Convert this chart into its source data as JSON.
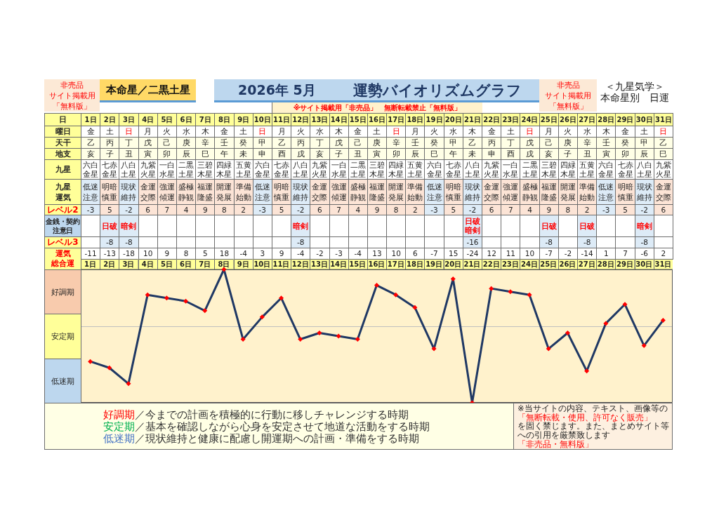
{
  "chart_data": {
    "type": "line",
    "title": "運勢バイオリズムグラフ",
    "subtitle": "2026年 5月",
    "categories": [
      "1日",
      "2日",
      "3日",
      "4日",
      "5日",
      "6日",
      "7日",
      "8日",
      "9日",
      "10日",
      "11日",
      "12日",
      "13日",
      "14日",
      "15日",
      "16日",
      "17日",
      "18日",
      "19日",
      "20日",
      "21日",
      "22日",
      "23日",
      "24日",
      "25日",
      "26日",
      "27日",
      "28日",
      "29日",
      "30日",
      "31日"
    ],
    "values": [
      -11,
      -13,
      -18,
      10,
      9,
      8,
      5,
      18,
      -4,
      3,
      9,
      -4,
      -2,
      -3,
      -4,
      13,
      10,
      6,
      -7,
      15,
      -24,
      12,
      11,
      10,
      -7,
      -2,
      -14,
      1,
      7,
      -6,
      2
    ],
    "color": "#1f3864",
    "colors": [
      "#ff0000",
      "#ff0000",
      "#ff0000",
      "#ff0000",
      "#ff0000",
      "#ff0000",
      "#ff0000",
      "#ff0000",
      "#ff0000",
      "#ff0000",
      "#ff0000",
      "#ff0000",
      "#ff0000",
      "#ff0000",
      "#ff0000",
      "#ff0000",
      "#ff0000",
      "#ff0000",
      "#ff0000",
      "#ff0000",
      "#ff0000",
      "#ff0000",
      "#ff0000",
      "#ff0000",
      "#ff0000",
      "#ff0000",
      "#ff0000",
      "#ff0000",
      "#ff0000",
      "#ff0000",
      "#ff0000"
    ],
    "marker": "diamond",
    "data_labels": true,
    "tick_labels": "x",
    "ylim": [
      -24,
      18
    ],
    "ref_lines": [
      {
        "axis": "y",
        "value": 0,
        "color": "#bfbfbf"
      }
    ],
    "annotations": [
      "非売品",
      "サイト掲載用",
      "「無料版」",
      "本命星／二黒土星",
      "※サイト掲載用「非売品」　無断転載禁止「無料版」",
      "非売品",
      "サイト掲載用",
      "「無料版」",
      "＜九星気学＞",
      "本命星別　日運",
      "日",
      "曜日",
      "金",
      "土",
      "日",
      "月",
      "火",
      "水",
      "木",
      "金",
      "土",
      "日",
      "月",
      "火",
      "水",
      "木",
      "金",
      "土",
      "日",
      "月",
      "火",
      "水",
      "木",
      "金",
      "土",
      "日",
      "月",
      "火",
      "水",
      "木",
      "金",
      "土",
      "日",
      "天干",
      "乙",
      "丙",
      "丁",
      "戊",
      "己",
      "庚",
      "辛",
      "壬",
      "癸",
      "甲",
      "乙",
      "丙",
      "丁",
      "戊",
      "己",
      "庚",
      "辛",
      "壬",
      "癸",
      "甲",
      "乙",
      "丙",
      "丁",
      "戊",
      "己",
      "庚",
      "辛",
      "壬",
      "癸",
      "甲",
      "乙",
      "地支",
      "亥",
      "子",
      "丑",
      "寅",
      "卯",
      "辰",
      "巳",
      "午",
      "未",
      "申",
      "酉",
      "戌",
      "亥",
      "子",
      "丑",
      "寅",
      "卯",
      "辰",
      "巳",
      "午",
      "未",
      "申",
      "酉",
      "戌",
      "亥",
      "子",
      "丑",
      "寅",
      "卯",
      "辰",
      "巳",
      "九星",
      "六白金星",
      "七赤金星",
      "八白土星",
      "九紫火星",
      "一白水星",
      "二黒土星",
      "三碧木星",
      "四緑木星",
      "五黄土星",
      "六白金星",
      "七赤金星",
      "八白土星",
      "九紫火星",
      "一白水星",
      "二黒土星",
      "三碧木星",
      "四緑木星",
      "五黄土星",
      "六白金星",
      "七赤金星",
      "八白土星",
      "九紫火星",
      "一白水星",
      "二黒土星",
      "三碧木星",
      "四緑木星",
      "五黄土星",
      "六白金星",
      "七赤金星",
      "八白土星",
      "九紫火星",
      "九星運気",
      "低迷注意",
      "明暗慎重",
      "現状維持",
      "金運交際",
      "強運傾運",
      "盛極静観",
      "福運隆盛",
      "開運発展",
      "準備始動",
      "低迷注意",
      "明暗慎重",
      "現状維持",
      "金運交際",
      "強運傾運",
      "盛極静観",
      "福運隆盛",
      "開運発展",
      "準備始動",
      "低迷注意",
      "明暗慎重",
      "現状維持",
      "金運交際",
      "強運傾運",
      "盛極静観",
      "福運隆盛",
      "開運発展",
      "準備始動",
      "低迷注意",
      "明暗慎重",
      "現状維持",
      "金運交際",
      "レベル2",
      "-3",
      "5",
      "-2",
      "6",
      "7",
      "4",
      "9",
      "8",
      "2",
      "-3",
      "5",
      "-2",
      "6",
      "7",
      "4",
      "9",
      "8",
      "2",
      "-3",
      "5",
      "-2",
      "6",
      "7",
      "4",
      "9",
      "8",
      "2",
      "-3",
      "5",
      "-2",
      "6",
      "金銭・契約注意日",
      "日破",
      "暗剣",
      "暗剣",
      "日破暗剣",
      "日破",
      "日破",
      "暗剣",
      "レベル3",
      "-8",
      "-8",
      "-8",
      "-16",
      "-8",
      "-8",
      "-8",
      "運気",
      "総合運",
      "好調期",
      "安定期",
      "低迷期",
      "好調期／今までの計画を積極的に行動に移しチャレンジする時期",
      "安定期／基本を確認しながら心身を安定させて地道な活動をする時期",
      "低迷期／現状維持と健康に配慮し開運期への計画・準備をする時期",
      "※当サイトの内容、テキスト、画像等の",
      "「無断転載・使用、許可なく販売」",
      "を固く禁じます。また、まとめサイト等への引用を厳禁致します",
      "「非売品・無料版」"
    ]
  }
}
